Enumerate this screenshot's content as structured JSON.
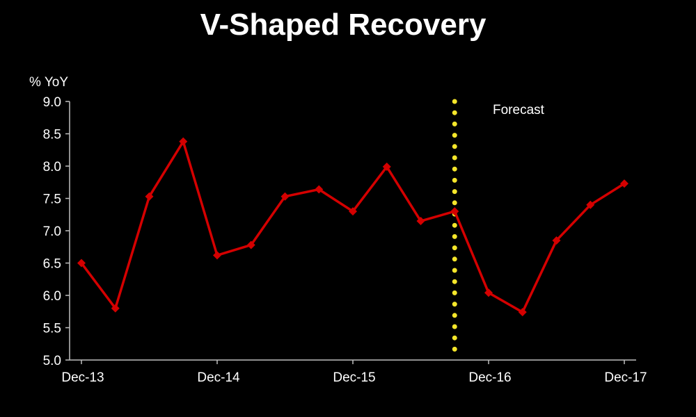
{
  "chart_data": {
    "type": "line",
    "title": "V-Shaped Recovery",
    "ylabel": "% YoY",
    "xlabel": "",
    "ylim": [
      5.0,
      9.0
    ],
    "yticks": [
      "5.0",
      "5.5",
      "6.0",
      "6.5",
      "7.0",
      "7.5",
      "8.0",
      "8.5",
      "9.0"
    ],
    "x": [
      "Dec-13",
      "Mar-14",
      "Jun-14",
      "Sep-14",
      "Dec-14",
      "Mar-15",
      "Jun-15",
      "Sep-15",
      "Dec-15",
      "Mar-16",
      "Jun-16",
      "Sep-16",
      "Dec-16",
      "Mar-17",
      "Jun-17",
      "Sep-17",
      "Dec-17"
    ],
    "x_tick_labels": [
      "Dec-13",
      "Dec-14",
      "Dec-15",
      "Dec-16",
      "Dec-17"
    ],
    "series": [
      {
        "values": [
          6.5,
          5.8,
          7.53,
          8.38,
          6.62,
          6.78,
          7.53,
          7.64,
          7.3,
          7.99,
          7.15,
          7.3,
          6.04,
          5.74,
          6.85,
          7.4,
          7.73
        ],
        "color": "#d40000"
      }
    ],
    "forecast_start": "Sep-16",
    "forecast_label": "Forecast",
    "forecast_line_color": "#f5e62a",
    "grid": false,
    "legend": "none"
  }
}
